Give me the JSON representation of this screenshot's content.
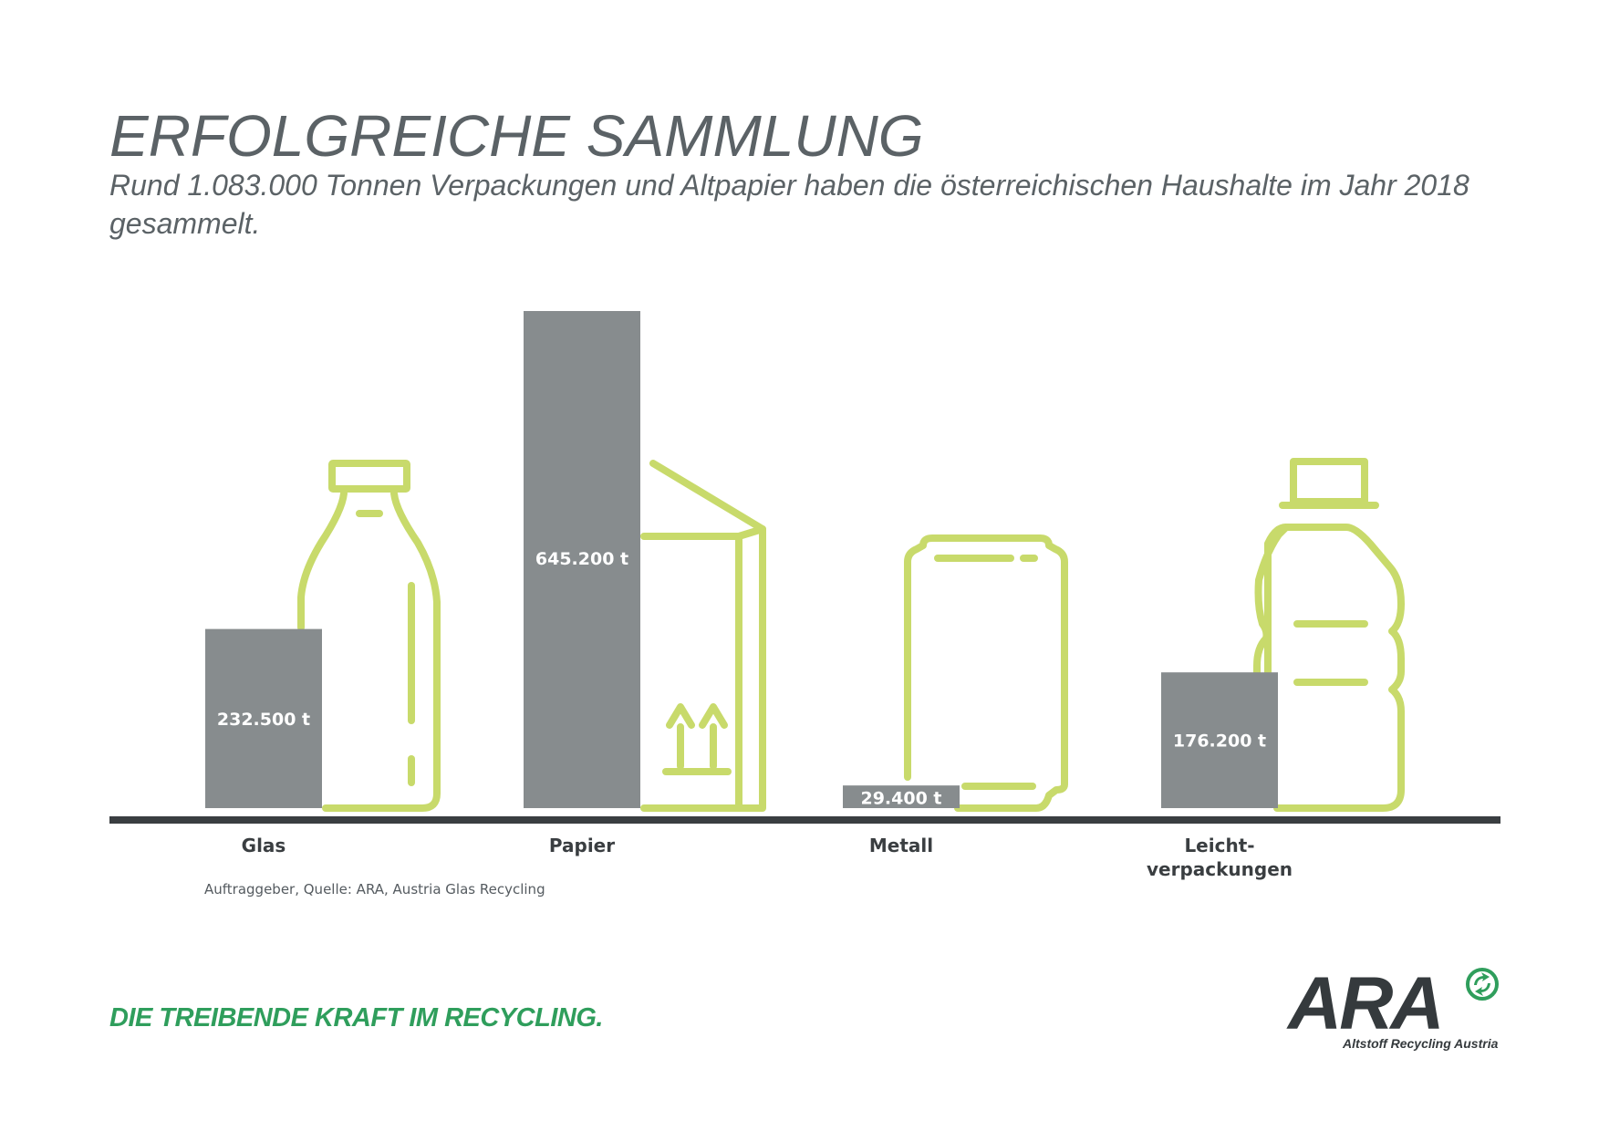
{
  "header": {
    "title": "ERFOLGREICHE SAMMLUNG",
    "subtitle": "Rund 1.083.000 Tonnen Verpackungen und Altpapier haben die österreichischen Haushalte im Jahr 2018 gesammelt."
  },
  "chart_data": {
    "type": "bar",
    "categories": [
      "Glas",
      "Papier",
      "Metall",
      "Leicht-\nverpackungen"
    ],
    "values": [
      232500,
      645200,
      29400,
      176200
    ],
    "data_labels": [
      "232.500 t",
      "645.200 t",
      "29.400 t",
      "176.200 t"
    ],
    "unit": "t",
    "icons": [
      "glass-bottle-icon",
      "cardboard-box-icon",
      "metal-can-icon",
      "plastic-bottle-icon"
    ],
    "grid": false,
    "colors": {
      "bar": "#878c8e",
      "icon": "#c8da6b",
      "axis": "#3a3e41",
      "label": "#ffffff"
    }
  },
  "source": "Auftraggeber, Quelle: ARA, Austria Glas Recycling",
  "footer": {
    "slogan": "DIE TREIBENDE KRAFT IM RECYCLING.",
    "logo_text": "ARA",
    "logo_subtext": "Altstoff Recycling Austria",
    "brand_green": "#2f9e5c"
  }
}
